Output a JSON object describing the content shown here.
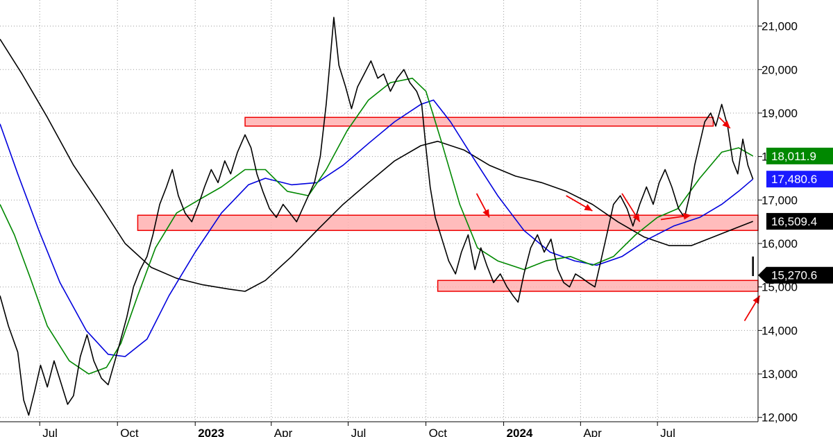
{
  "chart_data": {
    "type": "line",
    "title": "",
    "xlabel": "",
    "ylabel": "",
    "ylim": [
      11900,
      21600
    ],
    "y_ticks": [
      12000,
      13000,
      14000,
      15000,
      16000,
      17000,
      18000,
      19000,
      20000,
      21000
    ],
    "y_tick_labels": [
      "12,000",
      "13,000",
      "14,000",
      "15,000",
      "16,000",
      "17,000",
      "18,000",
      "19,000",
      "20,000",
      "21,000"
    ],
    "x_range": [
      "2022-05-15",
      "2024-10-28"
    ],
    "x_ticks": [
      {
        "date": "2022-07-01",
        "label": "Jul",
        "year": false
      },
      {
        "date": "2022-10-01",
        "label": "Oct",
        "year": false
      },
      {
        "date": "2023-01-01",
        "label": "2023",
        "year": true
      },
      {
        "date": "2023-04-01",
        "label": "Apr",
        "year": false
      },
      {
        "date": "2023-07-01",
        "label": "Jul",
        "year": false
      },
      {
        "date": "2023-10-01",
        "label": "Oct",
        "year": false
      },
      {
        "date": "2024-01-01",
        "label": "2024",
        "year": true
      },
      {
        "date": "2024-04-01",
        "label": "Apr",
        "year": false
      },
      {
        "date": "2024-07-01",
        "label": "Jul",
        "year": false
      }
    ],
    "grid": true,
    "price_series": {
      "color": "#000000",
      "points": [
        [
          "2022-05-15",
          14800
        ],
        [
          "2022-05-25",
          14100
        ],
        [
          "2022-06-05",
          13500
        ],
        [
          "2022-06-12",
          12400
        ],
        [
          "2022-06-18",
          12050
        ],
        [
          "2022-06-25",
          12600
        ],
        [
          "2022-07-02",
          13200
        ],
        [
          "2022-07-10",
          12700
        ],
        [
          "2022-07-18",
          13300
        ],
        [
          "2022-07-26",
          12800
        ],
        [
          "2022-08-03",
          12300
        ],
        [
          "2022-08-10",
          12500
        ],
        [
          "2022-08-18",
          13400
        ],
        [
          "2022-08-26",
          13900
        ],
        [
          "2022-09-03",
          13300
        ],
        [
          "2022-09-12",
          12900
        ],
        [
          "2022-09-20",
          12750
        ],
        [
          "2022-09-28",
          13300
        ],
        [
          "2022-10-05",
          13800
        ],
        [
          "2022-10-12",
          14300
        ],
        [
          "2022-10-20",
          15000
        ],
        [
          "2022-10-28",
          15400
        ],
        [
          "2022-11-05",
          15700
        ],
        [
          "2022-11-12",
          16200
        ],
        [
          "2022-11-20",
          16900
        ],
        [
          "2022-11-28",
          17300
        ],
        [
          "2022-12-05",
          17700
        ],
        [
          "2022-12-12",
          17100
        ],
        [
          "2022-12-20",
          16700
        ],
        [
          "2022-12-28",
          16500
        ],
        [
          "2023-01-05",
          16900
        ],
        [
          "2023-01-12",
          17300
        ],
        [
          "2023-01-20",
          17700
        ],
        [
          "2023-01-28",
          17400
        ],
        [
          "2023-02-05",
          17900
        ],
        [
          "2023-02-12",
          17600
        ],
        [
          "2023-02-20",
          18100
        ],
        [
          "2023-03-01",
          18500
        ],
        [
          "2023-03-08",
          18200
        ],
        [
          "2023-03-15",
          17600
        ],
        [
          "2023-03-22",
          17200
        ],
        [
          "2023-03-30",
          16800
        ],
        [
          "2023-04-07",
          16600
        ],
        [
          "2023-04-15",
          16900
        ],
        [
          "2023-04-23",
          16700
        ],
        [
          "2023-05-01",
          16500
        ],
        [
          "2023-05-08",
          16800
        ],
        [
          "2023-05-15",
          17100
        ],
        [
          "2023-05-22",
          17400
        ],
        [
          "2023-05-29",
          18000
        ],
        [
          "2023-06-05",
          19200
        ],
        [
          "2023-06-10",
          20300
        ],
        [
          "2023-06-14",
          21200
        ],
        [
          "2023-06-20",
          20100
        ],
        [
          "2023-06-28",
          19600
        ],
        [
          "2023-07-05",
          19100
        ],
        [
          "2023-07-12",
          19600
        ],
        [
          "2023-07-20",
          19900
        ],
        [
          "2023-07-28",
          20200
        ],
        [
          "2023-08-05",
          19800
        ],
        [
          "2023-08-12",
          19900
        ],
        [
          "2023-08-20",
          19500
        ],
        [
          "2023-08-28",
          19800
        ],
        [
          "2023-09-05",
          20000
        ],
        [
          "2023-09-12",
          19700
        ],
        [
          "2023-09-20",
          19500
        ],
        [
          "2023-09-26",
          19200
        ],
        [
          "2023-10-01",
          18200
        ],
        [
          "2023-10-06",
          17300
        ],
        [
          "2023-10-12",
          16600
        ],
        [
          "2023-10-20",
          16100
        ],
        [
          "2023-10-28",
          15600
        ],
        [
          "2023-11-05",
          15300
        ],
        [
          "2023-11-12",
          15800
        ],
        [
          "2023-11-20",
          16200
        ],
        [
          "2023-11-28",
          15400
        ],
        [
          "2023-12-05",
          15900
        ],
        [
          "2023-12-12",
          15500
        ],
        [
          "2023-12-20",
          15100
        ],
        [
          "2023-12-28",
          15300
        ],
        [
          "2024-01-05",
          15000
        ],
        [
          "2024-01-12",
          14800
        ],
        [
          "2024-01-18",
          14650
        ],
        [
          "2024-01-25",
          15300
        ],
        [
          "2024-02-02",
          15900
        ],
        [
          "2024-02-10",
          16200
        ],
        [
          "2024-02-18",
          15800
        ],
        [
          "2024-02-26",
          16100
        ],
        [
          "2024-03-05",
          15400
        ],
        [
          "2024-03-12",
          15100
        ],
        [
          "2024-03-19",
          15000
        ],
        [
          "2024-03-26",
          15300
        ],
        [
          "2024-04-03",
          15200
        ],
        [
          "2024-04-10",
          15100
        ],
        [
          "2024-04-18",
          15000
        ],
        [
          "2024-04-25",
          15600
        ],
        [
          "2024-05-02",
          16200
        ],
        [
          "2024-05-10",
          16900
        ],
        [
          "2024-05-18",
          17100
        ],
        [
          "2024-05-26",
          16800
        ],
        [
          "2024-06-02",
          16400
        ],
        [
          "2024-06-10",
          16900
        ],
        [
          "2024-06-18",
          17300
        ],
        [
          "2024-06-26",
          16900
        ],
        [
          "2024-07-03",
          17400
        ],
        [
          "2024-07-10",
          17700
        ],
        [
          "2024-07-18",
          17300
        ],
        [
          "2024-07-26",
          16800
        ],
        [
          "2024-08-02",
          16600
        ],
        [
          "2024-08-08",
          17100
        ],
        [
          "2024-08-14",
          17800
        ],
        [
          "2024-08-20",
          18300
        ],
        [
          "2024-08-26",
          18800
        ],
        [
          "2024-09-02",
          19000
        ],
        [
          "2024-09-08",
          18700
        ],
        [
          "2024-09-15",
          19200
        ],
        [
          "2024-09-22",
          18700
        ],
        [
          "2024-09-28",
          17900
        ],
        [
          "2024-10-04",
          17600
        ],
        [
          "2024-10-10",
          18400
        ],
        [
          "2024-10-16",
          17800
        ],
        [
          "2024-10-22",
          17480
        ]
      ]
    },
    "moving_averages": [
      {
        "color": "#008800",
        "points": [
          [
            "2022-05-15",
            16900
          ],
          [
            "2022-06-01",
            16200
          ],
          [
            "2022-06-20",
            15200
          ],
          [
            "2022-07-10",
            14100
          ],
          [
            "2022-08-05",
            13300
          ],
          [
            "2022-08-28",
            13000
          ],
          [
            "2022-09-18",
            13150
          ],
          [
            "2022-10-05",
            13700
          ],
          [
            "2022-10-25",
            14800
          ],
          [
            "2022-11-15",
            15900
          ],
          [
            "2022-12-10",
            16700
          ],
          [
            "2023-01-05",
            17000
          ],
          [
            "2023-02-01",
            17300
          ],
          [
            "2023-03-01",
            17700
          ],
          [
            "2023-03-25",
            17700
          ],
          [
            "2023-04-20",
            17200
          ],
          [
            "2023-05-15",
            17100
          ],
          [
            "2023-06-05",
            17700
          ],
          [
            "2023-06-30",
            18600
          ],
          [
            "2023-07-25",
            19300
          ],
          [
            "2023-08-20",
            19700
          ],
          [
            "2023-09-15",
            19800
          ],
          [
            "2023-10-01",
            19500
          ],
          [
            "2023-10-20",
            18300
          ],
          [
            "2023-11-10",
            16900
          ],
          [
            "2023-12-01",
            15900
          ],
          [
            "2023-12-25",
            15600
          ],
          [
            "2024-01-25",
            15400
          ],
          [
            "2024-02-20",
            15600
          ],
          [
            "2024-03-20",
            15700
          ],
          [
            "2024-04-15",
            15500
          ],
          [
            "2024-05-10",
            15700
          ],
          [
            "2024-06-05",
            16200
          ],
          [
            "2024-07-01",
            16600
          ],
          [
            "2024-07-25",
            16800
          ],
          [
            "2024-08-20",
            17500
          ],
          [
            "2024-09-15",
            18100
          ],
          [
            "2024-10-05",
            18200
          ],
          [
            "2024-10-22",
            18012
          ]
        ]
      },
      {
        "color": "#0000dd",
        "points": [
          [
            "2022-05-15",
            18750
          ],
          [
            "2022-06-05",
            17600
          ],
          [
            "2022-06-30",
            16300
          ],
          [
            "2022-07-25",
            15100
          ],
          [
            "2022-08-25",
            14000
          ],
          [
            "2022-09-20",
            13450
          ],
          [
            "2022-10-10",
            13400
          ],
          [
            "2022-11-05",
            13800
          ],
          [
            "2022-12-01",
            14800
          ],
          [
            "2023-01-01",
            15800
          ],
          [
            "2023-02-01",
            16700
          ],
          [
            "2023-03-05",
            17350
          ],
          [
            "2023-03-25",
            17500
          ],
          [
            "2023-04-25",
            17350
          ],
          [
            "2023-05-25",
            17400
          ],
          [
            "2023-06-25",
            17800
          ],
          [
            "2023-07-25",
            18300
          ],
          [
            "2023-08-25",
            18800
          ],
          [
            "2023-09-25",
            19200
          ],
          [
            "2023-10-10",
            19300
          ],
          [
            "2023-10-30",
            18800
          ],
          [
            "2023-11-25",
            18000
          ],
          [
            "2023-12-25",
            17100
          ],
          [
            "2024-01-25",
            16300
          ],
          [
            "2024-02-25",
            15800
          ],
          [
            "2024-03-25",
            15600
          ],
          [
            "2024-04-20",
            15500
          ],
          [
            "2024-05-20",
            15700
          ],
          [
            "2024-06-20",
            16100
          ],
          [
            "2024-07-20",
            16400
          ],
          [
            "2024-08-20",
            16600
          ],
          [
            "2024-09-15",
            16900
          ],
          [
            "2024-10-05",
            17200
          ],
          [
            "2024-10-22",
            17481
          ]
        ]
      },
      {
        "color": "#000000",
        "points": [
          [
            "2022-05-15",
            20700
          ],
          [
            "2022-06-10",
            19900
          ],
          [
            "2022-07-10",
            18900
          ],
          [
            "2022-08-10",
            17800
          ],
          [
            "2022-09-10",
            16900
          ],
          [
            "2022-10-10",
            16000
          ],
          [
            "2022-11-10",
            15450
          ],
          [
            "2022-12-10",
            15200
          ],
          [
            "2023-01-10",
            15050
          ],
          [
            "2023-02-10",
            14950
          ],
          [
            "2023-03-01",
            14900
          ],
          [
            "2023-03-25",
            15150
          ],
          [
            "2023-04-25",
            15700
          ],
          [
            "2023-05-25",
            16300
          ],
          [
            "2023-06-25",
            16900
          ],
          [
            "2023-07-25",
            17400
          ],
          [
            "2023-08-25",
            17900
          ],
          [
            "2023-09-25",
            18250
          ],
          [
            "2023-10-15",
            18350
          ],
          [
            "2023-11-15",
            18150
          ],
          [
            "2023-12-15",
            17800
          ],
          [
            "2024-01-15",
            17550
          ],
          [
            "2024-02-15",
            17400
          ],
          [
            "2024-03-15",
            17200
          ],
          [
            "2024-04-15",
            16900
          ],
          [
            "2024-05-15",
            16500
          ],
          [
            "2024-06-15",
            16150
          ],
          [
            "2024-07-15",
            15950
          ],
          [
            "2024-08-10",
            15950
          ],
          [
            "2024-09-05",
            16150
          ],
          [
            "2024-10-01",
            16350
          ],
          [
            "2024-10-22",
            16509
          ]
        ]
      }
    ],
    "zones": [
      {
        "x_start": "2023-03-01",
        "x_end": "2024-09-05",
        "y_low": 18700,
        "y_high": 18900
      },
      {
        "x_start": "2022-10-25",
        "x_end": "2024-10-28",
        "y_low": 16300,
        "y_high": 16650
      },
      {
        "x_start": "2023-10-15",
        "x_end": "2024-10-28",
        "y_low": 14900,
        "y_high": 15150
      }
    ],
    "arrows": [
      {
        "from": [
          "2023-11-30",
          17150
        ],
        "to": [
          "2023-12-15",
          16600
        ]
      },
      {
        "from": [
          "2024-03-15",
          17100
        ],
        "to": [
          "2024-04-15",
          16750
        ]
      },
      {
        "from": [
          "2024-05-20",
          17150
        ],
        "to": [
          "2024-06-10",
          16500
        ]
      },
      {
        "from": [
          "2024-07-05",
          16550
        ],
        "to": [
          "2024-08-10",
          16650
        ]
      },
      {
        "from": [
          "2024-09-12",
          18900
        ],
        "to": [
          "2024-09-25",
          18650
        ]
      },
      {
        "from": [
          "2024-10-12",
          14220
        ],
        "to": [
          "2024-10-30",
          14800
        ]
      }
    ],
    "marker": {
      "x": "2024-10-22",
      "y_low": 15250,
      "y_high": 15700
    },
    "value_labels": [
      {
        "text": "18,011.9",
        "value": 18011.9,
        "bg": "#008800",
        "fg": "#ffffff",
        "shape": "rect"
      },
      {
        "text": "17,480.6",
        "value": 17480.6,
        "bg": "#1a1aff",
        "fg": "#ffffff",
        "shape": "rect"
      },
      {
        "text": "16,509.4",
        "value": 16509.4,
        "bg": "#000000",
        "fg": "#ffffff",
        "shape": "rect"
      },
      {
        "text": "15,270.6",
        "value": 15270.6,
        "bg": "#000000",
        "fg": "#ffffff",
        "shape": "pointer"
      }
    ]
  }
}
